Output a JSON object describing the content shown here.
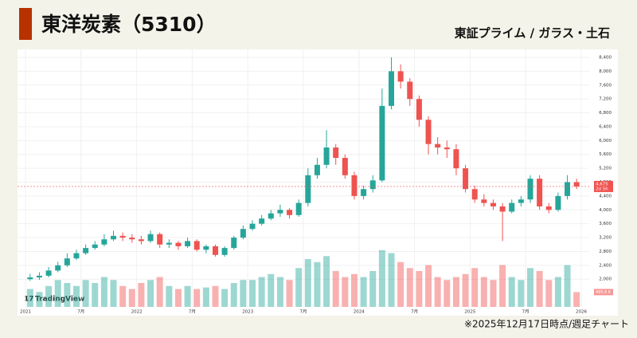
{
  "chart_data": {
    "type": "candlestick",
    "title": "東洋炭素（5310）",
    "subtitle": "東証プライム / ガラス・土石",
    "footnote": "※2025年12月17日時点/週足チャート",
    "brand": "TradingView",
    "countdown": "2d 5h",
    "up_color": "#26a69a",
    "down_color": "#ef5350",
    "x": [
      "2021-01",
      "2021-02",
      "2021-03",
      "2021-04",
      "2021-05",
      "2021-06",
      "2021-07",
      "2021-08",
      "2021-09",
      "2021-10",
      "2021-11",
      "2021-12",
      "2022-01",
      "2022-02",
      "2022-03",
      "2022-04",
      "2022-05",
      "2022-06",
      "2022-07",
      "2022-08",
      "2022-09",
      "2022-10",
      "2022-11",
      "2022-12",
      "2023-01",
      "2023-02",
      "2023-03",
      "2023-04",
      "2023-05",
      "2023-06",
      "2023-07",
      "2023-08",
      "2023-09",
      "2023-10",
      "2023-11",
      "2023-12",
      "2024-01",
      "2024-02",
      "2024-03",
      "2024-04",
      "2024-05",
      "2024-06",
      "2024-07",
      "2024-08",
      "2024-09",
      "2024-10",
      "2024-11",
      "2024-12",
      "2025-01",
      "2025-02",
      "2025-03",
      "2025-04",
      "2025-05",
      "2025-06",
      "2025-07",
      "2025-08",
      "2025-09",
      "2025-10",
      "2025-11",
      "2025-12"
    ],
    "open": [
      2000,
      2050,
      2100,
      2250,
      2400,
      2600,
      2750,
      2900,
      3000,
      3150,
      3250,
      3200,
      3150,
      3100,
      3300,
      3000,
      3050,
      2950,
      3100,
      2850,
      2950,
      2700,
      2900,
      3200,
      3450,
      3600,
      3750,
      3900,
      4000,
      3850,
      4200,
      5000,
      5300,
      5800,
      5500,
      5000,
      4400,
      4600,
      4850,
      7000,
      8000,
      7700,
      7200,
      6600,
      5900,
      5800,
      5750,
      5200,
      4600,
      4300,
      4200,
      4100,
      3950,
      4200,
      4300,
      4900,
      4100,
      4000,
      4400,
      4800
    ],
    "high": [
      2150,
      2200,
      2350,
      2500,
      2750,
      2850,
      3000,
      3100,
      3300,
      3400,
      3350,
      3300,
      3250,
      3400,
      3350,
      3150,
      3100,
      3200,
      3150,
      3000,
      3000,
      2950,
      3250,
      3550,
      3700,
      3850,
      4000,
      4150,
      4050,
      4300,
      5200,
      5500,
      6300,
      5900,
      5600,
      5100,
      4700,
      5000,
      7500,
      8400,
      8200,
      7800,
      7300,
      6700,
      6100,
      6000,
      5900,
      5300,
      4700,
      4450,
      4300,
      4200,
      4300,
      4400,
      5000,
      5000,
      4200,
      4500,
      5000,
      4900
    ],
    "low": [
      1950,
      1980,
      2050,
      2200,
      2350,
      2550,
      2700,
      2850,
      2950,
      3100,
      3100,
      3050,
      3000,
      3050,
      2900,
      2900,
      2850,
      2900,
      2800,
      2750,
      2650,
      2650,
      2850,
      3150,
      3400,
      3550,
      3700,
      3800,
      3750,
      3800,
      4100,
      4900,
      5200,
      5300,
      4900,
      4300,
      4300,
      4500,
      4800,
      6900,
      7500,
      7000,
      6400,
      5600,
      5600,
      5500,
      5000,
      4500,
      4200,
      4100,
      4000,
      3100,
      3900,
      4100,
      4200,
      4000,
      3900,
      3950,
      4300,
      4600
    ],
    "close": [
      2050,
      2100,
      2250,
      2400,
      2600,
      2750,
      2900,
      3000,
      3150,
      3250,
      3200,
      3150,
      3100,
      3300,
      3000,
      3050,
      2950,
      3100,
      2850,
      2950,
      2700,
      2900,
      3200,
      3450,
      3600,
      3750,
      3900,
      4000,
      3850,
      4200,
      5000,
      5300,
      5800,
      5500,
      5000,
      4400,
      4600,
      4850,
      7000,
      8000,
      7700,
      7200,
      6600,
      5900,
      5800,
      5750,
      5200,
      4600,
      4300,
      4200,
      4100,
      3950,
      4200,
      4300,
      4900,
      4100,
      4000,
      4400,
      4800,
      4675
    ],
    "volume": {
      "values": [
        600,
        500,
        700,
        900,
        800,
        700,
        900,
        800,
        1000,
        900,
        700,
        600,
        800,
        900,
        1000,
        700,
        600,
        700,
        600,
        650,
        700,
        600,
        800,
        900,
        900,
        1000,
        1100,
        1000,
        900,
        1300,
        1600,
        1500,
        1700,
        1200,
        1000,
        1100,
        1000,
        1200,
        1900,
        1800,
        1500,
        1300,
        1200,
        1400,
        1000,
        900,
        1000,
        1100,
        1300,
        1000,
        900,
        1400,
        1000,
        900,
        1300,
        1200,
        900,
        1000,
        1400,
        495.6
      ],
      "value_labels": [
        null,
        null,
        null,
        null,
        null,
        null,
        null,
        null,
        null,
        null,
        null,
        null,
        null,
        null,
        null,
        null,
        null,
        null,
        null,
        null,
        null,
        null,
        null,
        null,
        null,
        null,
        null,
        null,
        null,
        null,
        null,
        null,
        null,
        null,
        null,
        null,
        null,
        null,
        null,
        null,
        null,
        null,
        null,
        null,
        null,
        null,
        null,
        null,
        null,
        null,
        null,
        null,
        null,
        null,
        null,
        null,
        null,
        null,
        null,
        "495.6 K"
      ],
      "lim": [
        0,
        2000
      ]
    },
    "last_price": {
      "value": 4675,
      "label": "4,675"
    },
    "ylim": [
      1200,
      8630
    ],
    "yticks": [
      {
        "value": 2000,
        "label": "2,000"
      },
      {
        "value": 2400,
        "label": "2,400"
      },
      {
        "value": 2800,
        "label": "2,800"
      },
      {
        "value": 3200,
        "label": "3,200"
      },
      {
        "value": 3600,
        "label": "3,600"
      },
      {
        "value": 4000,
        "label": "4,000"
      },
      {
        "value": 4400,
        "label": "4,400"
      },
      {
        "value": 4800,
        "label": "4,800"
      },
      {
        "value": 5200,
        "label": "5,200"
      },
      {
        "value": 5600,
        "label": "5,600"
      },
      {
        "value": 6000,
        "label": "6,000"
      },
      {
        "value": 6400,
        "label": "6,400"
      },
      {
        "value": 6800,
        "label": "6,800"
      },
      {
        "value": 7200,
        "label": "7,200"
      },
      {
        "value": 7600,
        "label": "7,600"
      },
      {
        "value": 8000,
        "label": "8,000"
      },
      {
        "value": 8400,
        "label": "8,400"
      }
    ],
    "xticks": [
      {
        "value": "2021-01",
        "label": "2021"
      },
      {
        "value": "2021-07",
        "label": "7月"
      },
      {
        "value": "2022-01",
        "label": "2022"
      },
      {
        "value": "2022-07",
        "label": "7月"
      },
      {
        "value": "2023-01",
        "label": "2023"
      },
      {
        "value": "2023-07",
        "label": "7月"
      },
      {
        "value": "2024-01",
        "label": "2024"
      },
      {
        "value": "2024-07",
        "label": "7月"
      },
      {
        "value": "2025-01",
        "label": "2025"
      },
      {
        "value": "2025-07",
        "label": "7月"
      },
      {
        "value": "2026-01",
        "label": "2026"
      }
    ],
    "grid": true
  }
}
